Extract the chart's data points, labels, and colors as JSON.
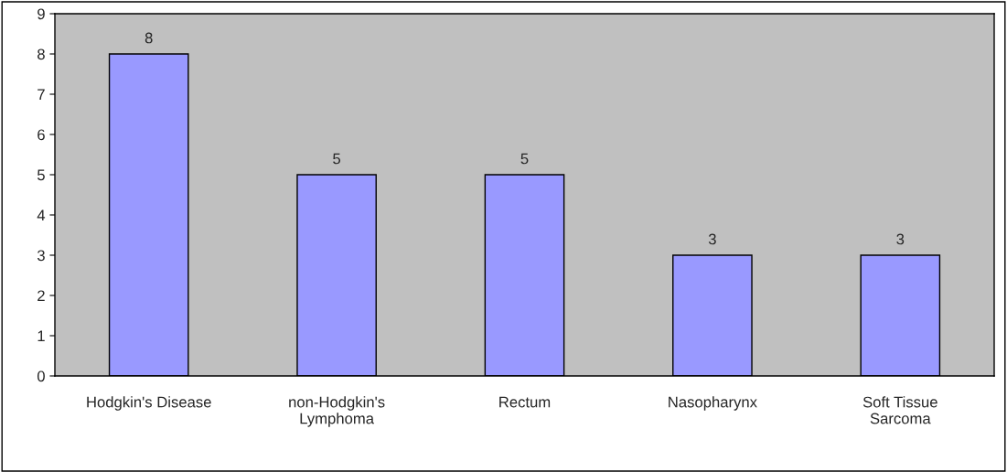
{
  "chart_data": {
    "type": "bar",
    "categories": [
      "Hodgkin's Disease",
      "non-Hodgkin's\nLymphoma",
      "Rectum",
      "Nasopharynx",
      "Soft Tissue\nSarcoma"
    ],
    "values": [
      8,
      5,
      5,
      3,
      3
    ],
    "color": "#9999ff",
    "ylim": [
      0,
      9
    ],
    "yticks": [
      0,
      1,
      2,
      3,
      4,
      5,
      6,
      7,
      8,
      9
    ],
    "data_labels": true,
    "grid": false,
    "legend": false
  }
}
